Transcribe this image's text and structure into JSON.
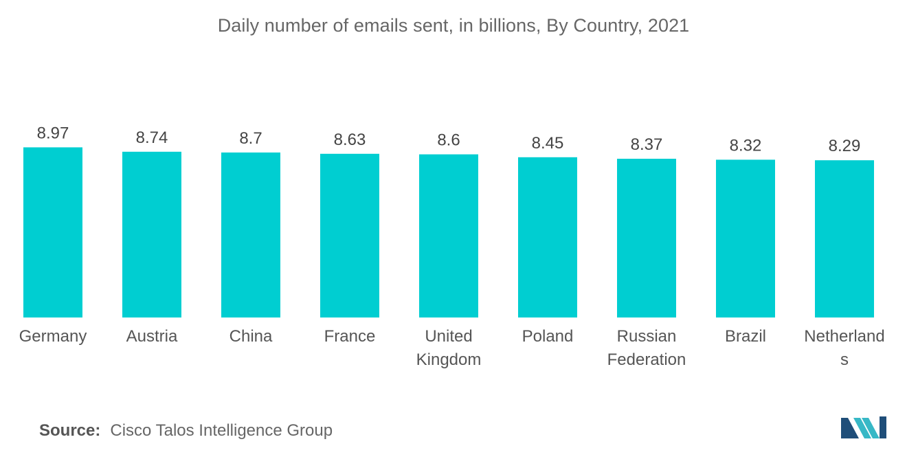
{
  "chart_data": {
    "type": "bar",
    "title": "Daily number of emails sent, in billions, By Country, 2021",
    "categories": [
      [
        "Germany"
      ],
      [
        "Austria"
      ],
      [
        "China"
      ],
      [
        "France"
      ],
      [
        "United",
        "Kingdom"
      ],
      [
        "Poland"
      ],
      [
        "Russian",
        "Federation"
      ],
      [
        "Brazil"
      ],
      [
        "Netherland",
        "s"
      ]
    ],
    "values": [
      8.97,
      8.74,
      8.7,
      8.63,
      8.6,
      8.45,
      8.37,
      8.32,
      8.29
    ],
    "value_labels": [
      "8.97",
      "8.74",
      "8.7",
      "8.63",
      "8.6",
      "8.45",
      "8.37",
      "8.32",
      "8.29"
    ],
    "xlabel": "",
    "ylabel": "",
    "grid": false,
    "bar_color": "#00CED1"
  },
  "source": {
    "label": "Source:",
    "text": "Cisco Talos Intelligence Group"
  },
  "colors": {
    "bar": "#00CED1",
    "logo_dark": "#1F4E79",
    "logo_light": "#37B8C6"
  }
}
